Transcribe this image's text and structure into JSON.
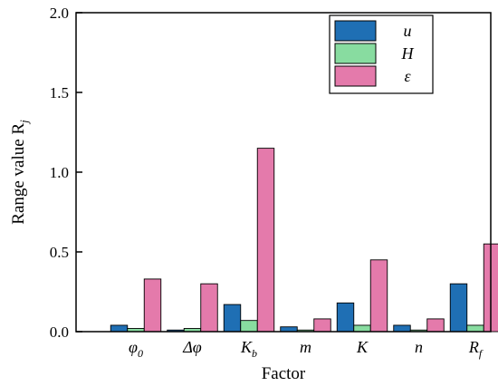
{
  "chart_data": {
    "type": "bar",
    "xlabel": "Factor",
    "ylabel": "Range value R",
    "ylabel_sub": "j",
    "ylim": [
      0,
      2.0
    ],
    "yticks": [
      "0.0",
      "0.5",
      "1.0",
      "1.5",
      "2.0"
    ],
    "categories": [
      {
        "main": "φ",
        "sub": "0"
      },
      {
        "main": "Δφ",
        "sub": ""
      },
      {
        "main": "K",
        "sub": "b"
      },
      {
        "main": "m",
        "sub": ""
      },
      {
        "main": "K",
        "sub": ""
      },
      {
        "main": "n",
        "sub": ""
      },
      {
        "main": "R",
        "sub": "f"
      }
    ],
    "series": [
      {
        "name": "u",
        "color": "#1f6fb4",
        "values": [
          0.04,
          0.01,
          0.17,
          0.03,
          0.18,
          0.04,
          0.3
        ]
      },
      {
        "name": "H",
        "color": "#88dca0",
        "values": [
          0.02,
          0.02,
          0.07,
          0.01,
          0.04,
          0.01,
          0.04
        ]
      },
      {
        "name": "ε",
        "color": "#e47aab",
        "values": [
          0.33,
          0.3,
          1.15,
          0.08,
          0.45,
          0.08,
          0.55
        ]
      }
    ],
    "grid": false,
    "legend_position": "top-right"
  }
}
